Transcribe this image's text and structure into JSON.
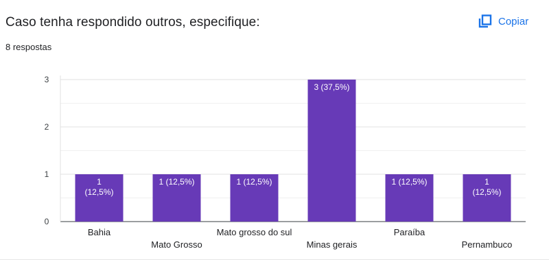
{
  "header": {
    "title": "Caso tenha respondido outros, especifique:",
    "responses": "8 respostas",
    "copy_label": "Copiar",
    "copy_icon": "copy-icon"
  },
  "colors": {
    "bar": "#673ab7",
    "accent": "#1a73e8",
    "grid": "#e0e0e0",
    "axis": "#5f6368"
  },
  "chart_data": {
    "type": "bar",
    "categories": [
      "Bahia",
      "Mato Grosso",
      "Mato grosso do sul",
      "Minas gerais",
      "Paraíba",
      "Pernambuco"
    ],
    "values": [
      1,
      1,
      1,
      3,
      1,
      1
    ],
    "bar_labels": [
      [
        "1",
        "(12,5%)"
      ],
      [
        "1 (12,5%)"
      ],
      [
        "1 (12,5%)"
      ],
      [
        "3 (37,5%)"
      ],
      [
        "1 (12,5%)"
      ],
      [
        "1",
        "(12,5%)"
      ]
    ],
    "category_label_row": [
      0,
      1,
      0,
      1,
      0,
      1
    ],
    "y_ticks": [
      0,
      1,
      2,
      3
    ],
    "ylim": [
      0,
      3
    ],
    "grid": true,
    "title": "",
    "xlabel": "",
    "ylabel": ""
  }
}
